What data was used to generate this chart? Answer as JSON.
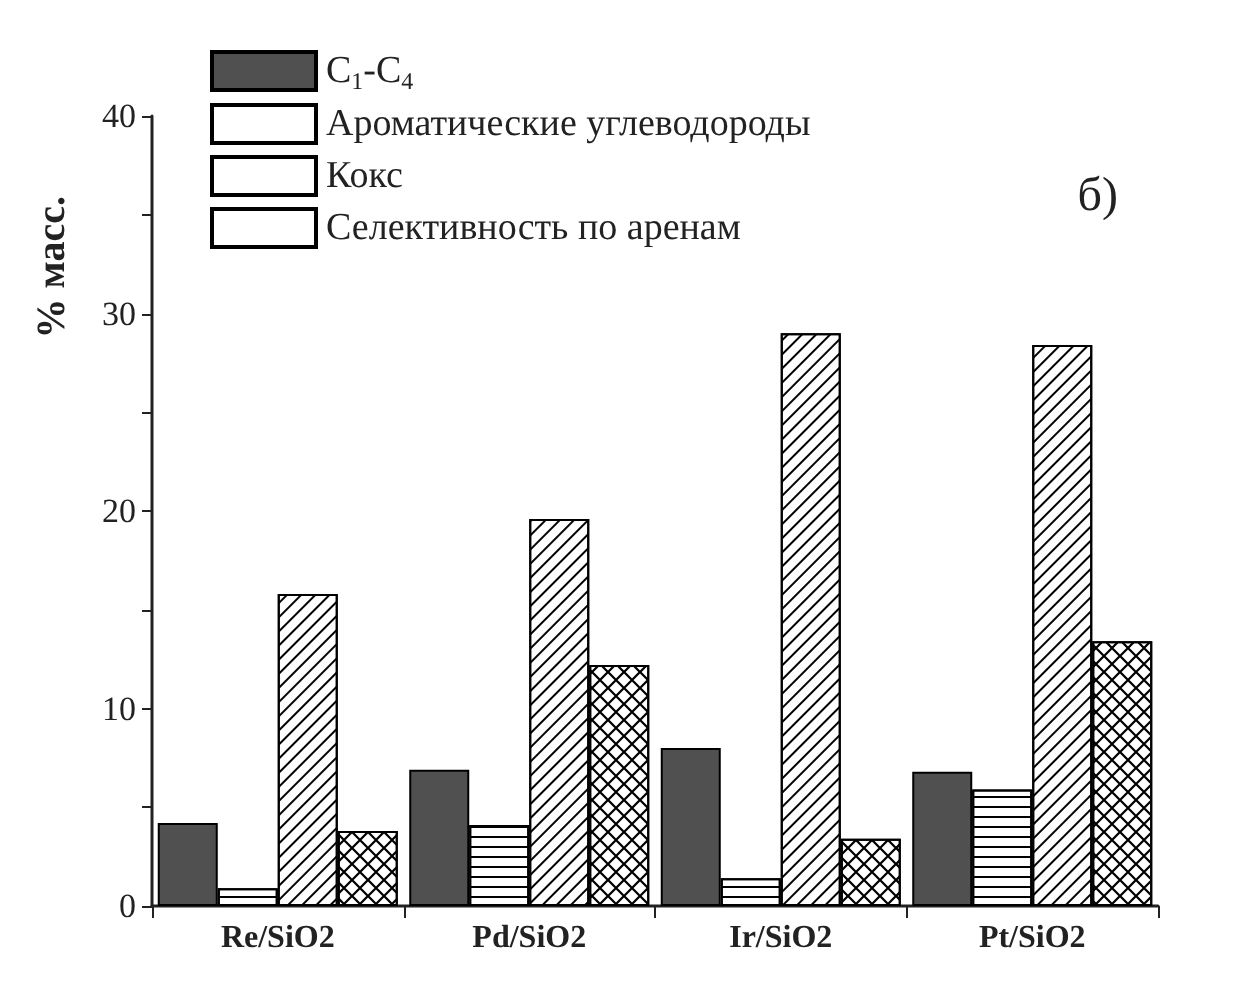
{
  "chart_data": {
    "type": "bar",
    "ylabel": "% масс.",
    "categories": [
      "Re/SiO2",
      "Pd/SiO2",
      "Ir/SiO2",
      "Pt/SiO2"
    ],
    "series": [
      {
        "name": "C$_{1}$-C$_{4}$",
        "color": "#505050",
        "values": [
          4.2,
          6.9,
          8.0,
          6.8
        ]
      },
      {
        "name": "Ароматические углеводороды",
        "color": "#ffffff",
        "values": [
          0.9,
          4.1,
          1.4,
          5.9
        ]
      },
      {
        "name": "Кокс",
        "color": "#ffffff",
        "values": [
          15.8,
          19.6,
          29.0,
          28.4
        ]
      },
      {
        "name": "Селективность по аренам",
        "color": "#ffffff",
        "values": [
          3.8,
          12.2,
          3.4,
          13.4
        ]
      }
    ],
    "ylim": [
      0,
      40
    ],
    "yticks": [
      0,
      {
        "value": 5,
        "label": null
      },
      10,
      {
        "value": 15,
        "label": null
      },
      20,
      {
        "value": 25,
        "label": null
      },
      30,
      {
        "value": 35,
        "label": null
      },
      40
    ],
    "annotations": [
      "б)"
    ],
    "legend": "top left",
    "grid": false
  }
}
